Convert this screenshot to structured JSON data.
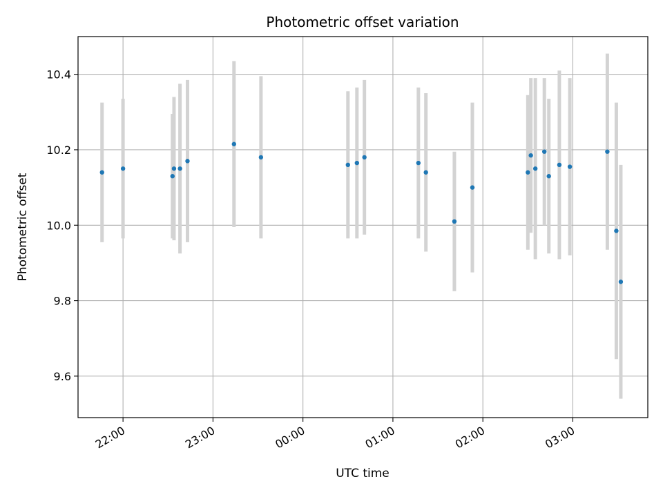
{
  "chart_data": {
    "type": "scatter",
    "title": "Photometric offset variation",
    "xlabel": "UTC time",
    "ylabel": "Photometric offset",
    "x_unit": "UTC time (HH:MM), spanning midnight",
    "xlim": [
      "21:30",
      "03:50"
    ],
    "ylim": [
      9.49,
      10.5
    ],
    "x_ticks": [
      "22:00",
      "23:00",
      "00:00",
      "01:00",
      "02:00",
      "03:00"
    ],
    "y_ticks": [
      "9.6",
      "9.8",
      "10.0",
      "10.2",
      "10.4"
    ],
    "grid": true,
    "colors": {
      "marker": "#1f77b4",
      "errorbar": "#d3d3d3",
      "grid": "#b0b0b0"
    },
    "points": [
      {
        "x": "21:46",
        "y": 10.14,
        "err": 0.185
      },
      {
        "x": "22:00",
        "y": 10.15,
        "err": 0.185
      },
      {
        "x": "22:33",
        "y": 10.13,
        "err": 0.165
      },
      {
        "x": "22:34",
        "y": 10.15,
        "err": 0.19
      },
      {
        "x": "22:38",
        "y": 10.15,
        "err": 0.225
      },
      {
        "x": "22:43",
        "y": 10.17,
        "err": 0.215
      },
      {
        "x": "23:14",
        "y": 10.215,
        "err": 0.22
      },
      {
        "x": "23:32",
        "y": 10.18,
        "err": 0.215
      },
      {
        "x": "00:30",
        "y": 10.16,
        "err": 0.195
      },
      {
        "x": "00:36",
        "y": 10.165,
        "err": 0.2
      },
      {
        "x": "00:41",
        "y": 10.18,
        "err": 0.205
      },
      {
        "x": "01:17",
        "y": 10.165,
        "err": 0.2
      },
      {
        "x": "01:22",
        "y": 10.14,
        "err": 0.21
      },
      {
        "x": "01:41",
        "y": 10.01,
        "err": 0.185
      },
      {
        "x": "01:53",
        "y": 10.1,
        "err": 0.225
      },
      {
        "x": "02:30",
        "y": 10.14,
        "err": 0.205
      },
      {
        "x": "02:32",
        "y": 10.185,
        "err": 0.205
      },
      {
        "x": "02:35",
        "y": 10.15,
        "err": 0.24
      },
      {
        "x": "02:41",
        "y": 10.195,
        "err": 0.195
      },
      {
        "x": "02:44",
        "y": 10.13,
        "err": 0.205
      },
      {
        "x": "02:51",
        "y": 10.16,
        "err": 0.25
      },
      {
        "x": "02:58",
        "y": 10.155,
        "err": 0.235
      },
      {
        "x": "03:23",
        "y": 10.195,
        "err": 0.26
      },
      {
        "x": "03:29",
        "y": 9.985,
        "err": 0.34
      },
      {
        "x": "03:32",
        "y": 9.85,
        "err": 0.31
      }
    ]
  }
}
